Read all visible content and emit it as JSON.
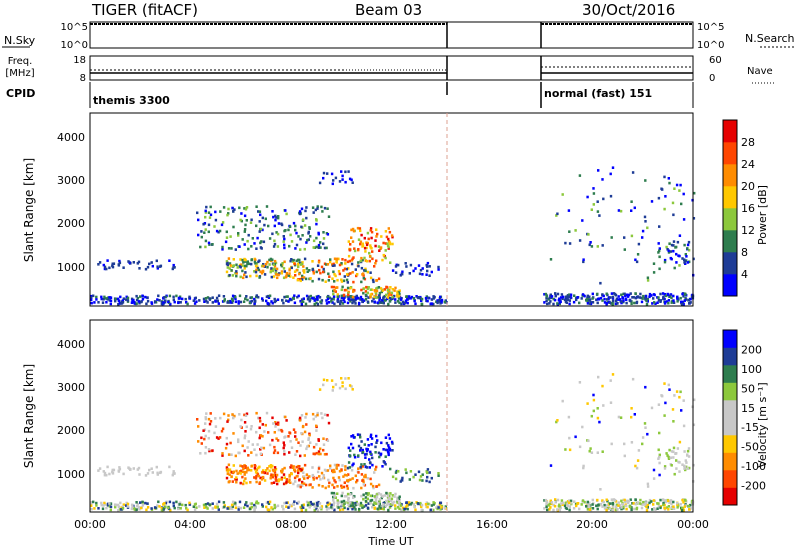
{
  "header": {
    "radar": "TIGER (fitACF)",
    "beam": "Beam 03",
    "date": "30/Oct/2016"
  },
  "status_panels": {
    "nsky": {
      "label": "N.Sky",
      "ticks": [
        "10^5",
        "10^0"
      ]
    },
    "nsearch": {
      "label": "N.Search",
      "ticks": [
        "10^5",
        "10^0"
      ]
    },
    "freq": {
      "label_line1": "Freq.",
      "label_line2": "[MHz]",
      "ticks": [
        "18",
        "8"
      ]
    },
    "nave": {
      "label": "Nave",
      "ticks": [
        "60",
        "0"
      ]
    },
    "cpid": {
      "label": "CPID",
      "modes": [
        "themis 3300",
        "normal (fast) 151"
      ]
    }
  },
  "colors": {
    "power": [
      "#0000ff",
      "#1e3c96",
      "#2e7d4e",
      "#8cc83c",
      "#ffc800",
      "#ff8c00",
      "#ff4600",
      "#e60000"
    ],
    "velocity": [
      "#e60000",
      "#ff4600",
      "#ff8c00",
      "#ffc800",
      "#c8c8c8",
      "#c8c8c8",
      "#8cc83c",
      "#2e7d4e",
      "#1e3c96",
      "#0000ff"
    ]
  },
  "chart_data": [
    {
      "type": "heatmap",
      "name": "power",
      "ylabel": "Slant Range [km]",
      "xlabel": "",
      "yticks": [
        "4000",
        "3000",
        "2000",
        "1000"
      ],
      "ylim": [
        180,
        4600
      ],
      "xlim": [
        0,
        24
      ],
      "colorbar_label": "Power [dB]",
      "colorbar_ticks": [
        "28",
        "24",
        "20",
        "16",
        "12",
        "8",
        "4"
      ],
      "data_gap": [
        14.2,
        18.0
      ]
    },
    {
      "type": "heatmap",
      "name": "velocity",
      "ylabel": "Slant Range [km]",
      "xlabel": "Time UT",
      "xticks": [
        "00:00",
        "04:00",
        "08:00",
        "12:00",
        "16:00",
        "20:00",
        "00:00"
      ],
      "yticks": [
        "4000",
        "3000",
        "2000",
        "1000"
      ],
      "ylim": [
        180,
        4600
      ],
      "xlim": [
        0,
        24
      ],
      "colorbar_label": "Velocity [m s⁻¹]",
      "colorbar_ticks": [
        "200",
        "100",
        "50",
        "15",
        "-15",
        "-50",
        "-100",
        "-200"
      ],
      "data_gap": [
        14.2,
        18.0
      ]
    }
  ]
}
